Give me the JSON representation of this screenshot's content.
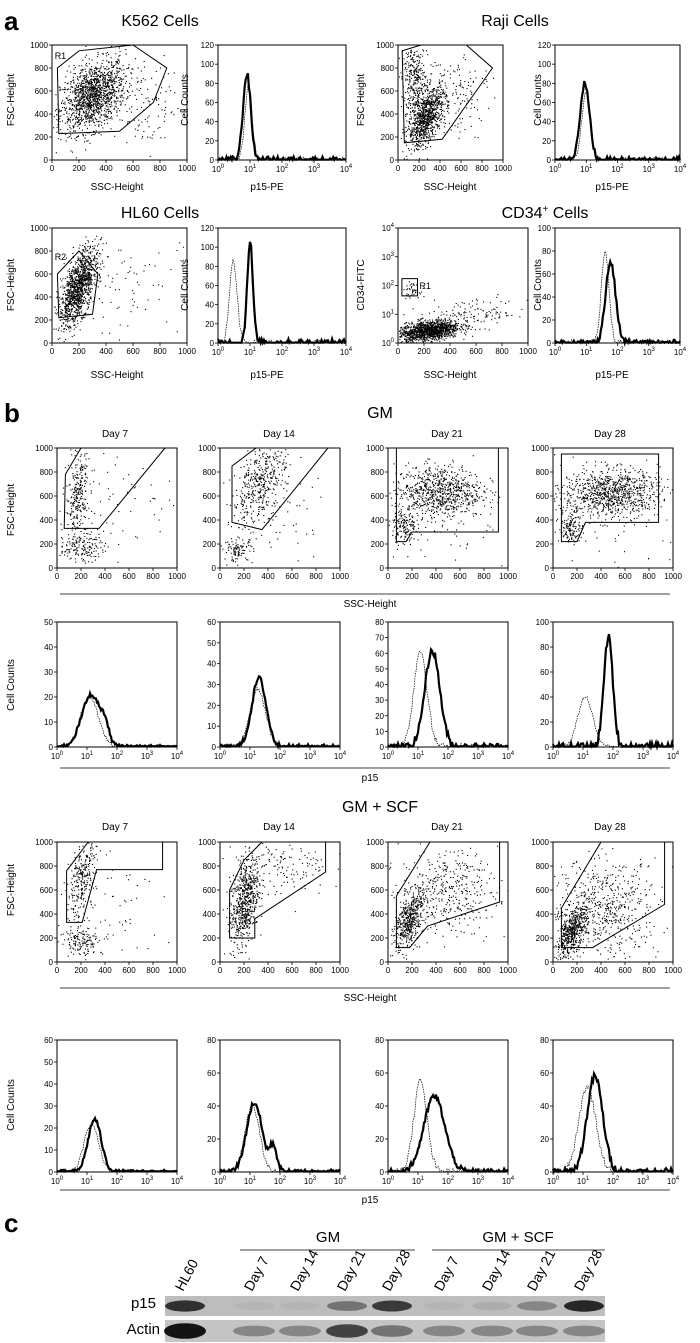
{
  "panel_a": {
    "letter": "a",
    "groups": [
      {
        "title": "K562 Cells",
        "gate": "R1",
        "scatter": {
          "ylabel": "FSC-Height",
          "xlabel": "SSC-Height"
        },
        "histogram": {
          "ylabel": "Cell Counts",
          "xlabel": "p15-PE"
        }
      },
      {
        "title": "Raji Cells",
        "gate": "",
        "scatter": {
          "ylabel": "FSC-Height",
          "xlabel": "SSC-Height"
        },
        "histogram": {
          "ylabel": "Cell Counts",
          "xlabel": "p15-PE"
        }
      },
      {
        "title": "HL60 Cells",
        "gate": "R2",
        "scatter": {
          "ylabel": "FSC-Height",
          "xlabel": "SSC-Height"
        },
        "histogram": {
          "ylabel": "Cell Counts",
          "xlabel": "p15-PE"
        }
      },
      {
        "title_main": "CD34",
        "title_sup": "+",
        "title_rest": " Cells",
        "gate": "R1",
        "scatter": {
          "ylabel": "CD34-FITC",
          "xlabel": "SSC-Height"
        },
        "histogram": {
          "ylabel": "Cell Counts",
          "xlabel": "p15-PE"
        }
      }
    ]
  },
  "panel_b": {
    "letter": "b",
    "sections": [
      {
        "title": "GM",
        "days": [
          "Day 7",
          "Day 14",
          "Day 21",
          "Day 28"
        ],
        "scatter_ylabel": "FSC-Height",
        "scatter_xlabel": "SSC-Height",
        "hist_ylabel": "Cell Counts",
        "hist_xlabel": "p15"
      },
      {
        "title": "GM + SCF",
        "days": [
          "Day 7",
          "Day 14",
          "Day 21",
          "Day 28"
        ],
        "scatter_ylabel": "FSC-Height",
        "scatter_xlabel": "SSC-Height",
        "hist_ylabel": "Cell Counts",
        "hist_xlabel": "p15"
      }
    ]
  },
  "panel_c": {
    "letter": "c",
    "group_labels": [
      "GM",
      "GM + SCF"
    ],
    "lanes": [
      "HL60",
      "Day 7",
      "Day 14",
      "Day 21",
      "Day 28",
      "Day 7",
      "Day 14",
      "Day 21",
      "Day 28"
    ],
    "rows": [
      "p15",
      "Actin"
    ],
    "p15_intensity": [
      0.8,
      0.1,
      0.1,
      0.45,
      0.75,
      0.1,
      0.15,
      0.35,
      0.85
    ],
    "actin_intensity": [
      0.95,
      0.35,
      0.35,
      0.7,
      0.45,
      0.35,
      0.35,
      0.35,
      0.35
    ]
  },
  "chart_data": [
    {
      "type": "scatter",
      "title": "K562 Cells",
      "xlabel": "SSC-Height",
      "ylabel": "FSC-Height",
      "xlim": [
        0,
        1000
      ],
      "ylim": [
        0,
        1000
      ],
      "gate": "R1"
    },
    {
      "type": "histogram",
      "title": "K562 Cells",
      "xlabel": "p15-PE",
      "ylabel": "Cell Counts",
      "xscale": "log",
      "xlim": [
        1,
        10000
      ],
      "ylim": [
        0,
        120
      ],
      "peak_x": 8,
      "peak_y": 90
    },
    {
      "type": "scatter",
      "title": "Raji Cells",
      "xlabel": "SSC-Height",
      "ylabel": "FSC-Height",
      "xlim": [
        0,
        1000
      ],
      "ylim": [
        0,
        1000
      ]
    },
    {
      "type": "histogram",
      "title": "Raji Cells",
      "xlabel": "p15-PE",
      "ylabel": "Cell Counts",
      "xscale": "log",
      "xlim": [
        1,
        10000
      ],
      "ylim": [
        0,
        120
      ],
      "peak_x": 9,
      "peak_y": 80
    },
    {
      "type": "scatter",
      "title": "HL60 Cells",
      "xlabel": "SSC-Height",
      "ylabel": "FSC-Height",
      "xlim": [
        0,
        1000
      ],
      "ylim": [
        0,
        1000
      ],
      "gate": "R2"
    },
    {
      "type": "histogram",
      "title": "HL60 Cells",
      "xlabel": "p15-PE",
      "ylabel": "Cell Counts",
      "xscale": "log",
      "xlim": [
        1,
        10000
      ],
      "ylim": [
        0,
        120
      ],
      "peak_x": 10,
      "peak_y": 105,
      "control_peak_x": 3,
      "control_peak_y": 85
    },
    {
      "type": "scatter",
      "title": "CD34+ Cells",
      "xlabel": "SSC-Height",
      "ylabel": "CD34-FITC",
      "xlim": [
        0,
        1000
      ],
      "yscale": "log",
      "ylim": [
        1,
        10000
      ],
      "gate": "R1"
    },
    {
      "type": "histogram",
      "title": "CD34+ Cells",
      "xlabel": "p15-PE",
      "ylabel": "Cell Counts",
      "xscale": "log",
      "xlim": [
        1,
        10000
      ],
      "ylim": [
        0,
        100
      ],
      "peak_x": 60,
      "peak_y": 70,
      "control_peak_x": 40,
      "control_peak_y": 80
    },
    {
      "type": "histogram",
      "title": "GM",
      "categories": [
        "Day 7",
        "Day 14",
        "Day 21",
        "Day 28"
      ],
      "xlabel": "p15",
      "ylabel": "Cell Counts",
      "xscale": "log",
      "xlim": [
        1,
        10000
      ],
      "ylim_per_day": [
        [
          0,
          50
        ],
        [
          0,
          60
        ],
        [
          0,
          80
        ],
        [
          0,
          100
        ]
      ],
      "peak_x": [
        14,
        20,
        30,
        70
      ],
      "peak_y": [
        22,
        35,
        65,
        90
      ],
      "control_peak_x": [
        12,
        18,
        12,
        12
      ],
      "control_peak_y": [
        20,
        30,
        65,
        40
      ]
    },
    {
      "type": "histogram",
      "title": "GM + SCF",
      "categories": [
        "Day 7",
        "Day 14",
        "Day 21",
        "Day 28"
      ],
      "xlabel": "p15",
      "ylabel": "Cell Counts",
      "xscale": "log",
      "xlim": [
        1,
        10000
      ],
      "ylim_per_day": [
        [
          0,
          60
        ],
        [
          0,
          80
        ],
        [
          0,
          80
        ],
        [
          0,
          80
        ]
      ],
      "peak_x": [
        18,
        14,
        35,
        25
      ],
      "peak_y": [
        25,
        45,
        48,
        60
      ],
      "control_peak_x": [
        14,
        12,
        12,
        14
      ],
      "control_peak_y": [
        22,
        40,
        60,
        55
      ]
    }
  ]
}
